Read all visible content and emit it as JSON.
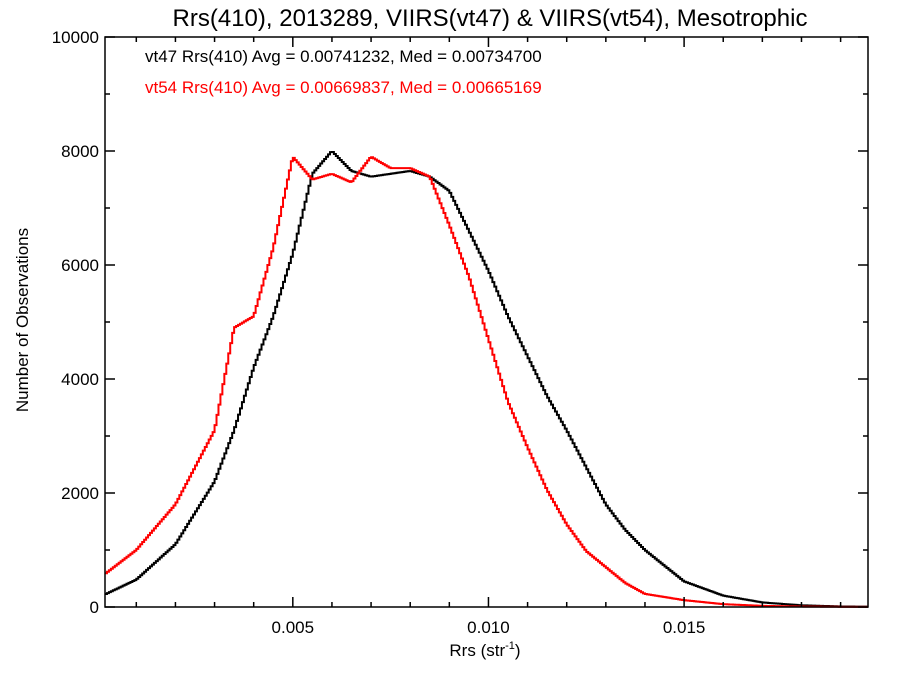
{
  "chart_data": {
    "type": "line",
    "title": "Rrs(410), 2013289, VIIRS(vt47) & VIIRS(vt54), Mesotrophic",
    "xlabel_main": "Rrs (str",
    "xlabel_sup": "-1",
    "xlabel_end": ")",
    "ylabel": "Number of Observations",
    "xlim": [
      0.0002,
      0.0197
    ],
    "ylim": [
      0,
      10000
    ],
    "xticks": [
      0.005,
      0.01,
      0.015
    ],
    "xtick_labels": [
      "0.005",
      "0.010",
      "0.015"
    ],
    "yticks": [
      0,
      2000,
      4000,
      6000,
      8000,
      10000
    ],
    "ytick_labels": [
      "0",
      "2000",
      "4000",
      "6000",
      "8000",
      "10000"
    ],
    "grid": false,
    "legend": "none",
    "annotations": [
      {
        "text": "vt47 Rrs(410) Avg = 0.00741232, Med = 0.00734700",
        "color": "#000000"
      },
      {
        "text": "vt54 Rrs(410) Avg = 0.00669837, Med = 0.00665169",
        "color": "#ff0000"
      }
    ],
    "x": [
      0.0002,
      0.001,
      0.002,
      0.003,
      0.0035,
      0.004,
      0.0045,
      0.005,
      0.0055,
      0.006,
      0.0065,
      0.007,
      0.0075,
      0.008,
      0.0085,
      0.009,
      0.0095,
      0.01,
      0.0105,
      0.011,
      0.0115,
      0.012,
      0.0125,
      0.013,
      0.0135,
      0.014,
      0.015,
      0.016,
      0.017,
      0.018,
      0.019,
      0.0197
    ],
    "series": [
      {
        "color": "#000000",
        "values": [
          220,
          480,
          1100,
          2200,
          3100,
          4200,
          5100,
          6200,
          7600,
          8000,
          7650,
          7550,
          7600,
          7650,
          7550,
          7300,
          6600,
          5900,
          5100,
          4400,
          3700,
          3100,
          2450,
          1800,
          1350,
          1000,
          450,
          200,
          80,
          30,
          10,
          5
        ]
      },
      {
        "color": "#ff0000",
        "values": [
          580,
          1000,
          1800,
          3100,
          4900,
          5100,
          6300,
          7900,
          7500,
          7600,
          7450,
          7900,
          7700,
          7700,
          7550,
          6700,
          5800,
          4700,
          3600,
          2800,
          2050,
          1450,
          980,
          700,
          420,
          230,
          120,
          50,
          20,
          8,
          3,
          2
        ]
      }
    ]
  }
}
